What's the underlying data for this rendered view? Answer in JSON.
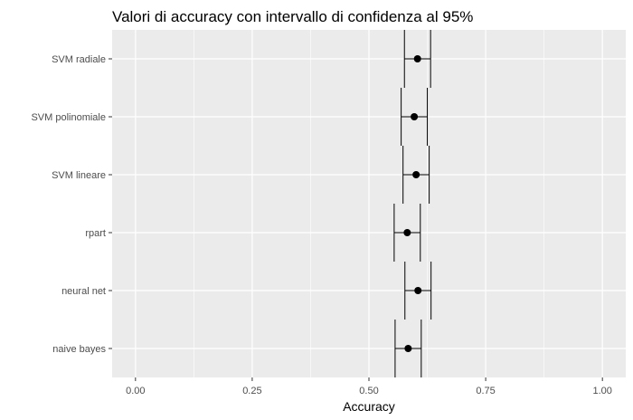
{
  "chart_data": {
    "type": "scatter",
    "title": "Valori di accuracy con intervallo di confidenza al 95%",
    "xlabel": "Accuracy",
    "ylabel": "",
    "xlim": [
      -0.05,
      1.05
    ],
    "x_ticks": [
      "0.00",
      "0.25",
      "0.50",
      "0.75",
      "1.00"
    ],
    "categories": [
      "SVM radiale",
      "SVM polinomiale",
      "SVM lineare",
      "rpart",
      "neural net",
      "naive bayes"
    ],
    "points": [
      {
        "category": "SVM radiale",
        "value": 0.604,
        "lower": 0.576,
        "upper": 0.632
      },
      {
        "category": "SVM polinomiale",
        "value": 0.597,
        "lower": 0.569,
        "upper": 0.625
      },
      {
        "category": "SVM lineare",
        "value": 0.601,
        "lower": 0.573,
        "upper": 0.629
      },
      {
        "category": "rpart",
        "value": 0.582,
        "lower": 0.554,
        "upper": 0.61
      },
      {
        "category": "neural net",
        "value": 0.605,
        "lower": 0.577,
        "upper": 0.633
      },
      {
        "category": "naive bayes",
        "value": 0.584,
        "lower": 0.556,
        "upper": 0.612
      }
    ],
    "grid": true,
    "legend": "none",
    "colors": {
      "panel_background": "#ebebeb",
      "grid_major": "#ffffff",
      "point": "#000000"
    }
  }
}
